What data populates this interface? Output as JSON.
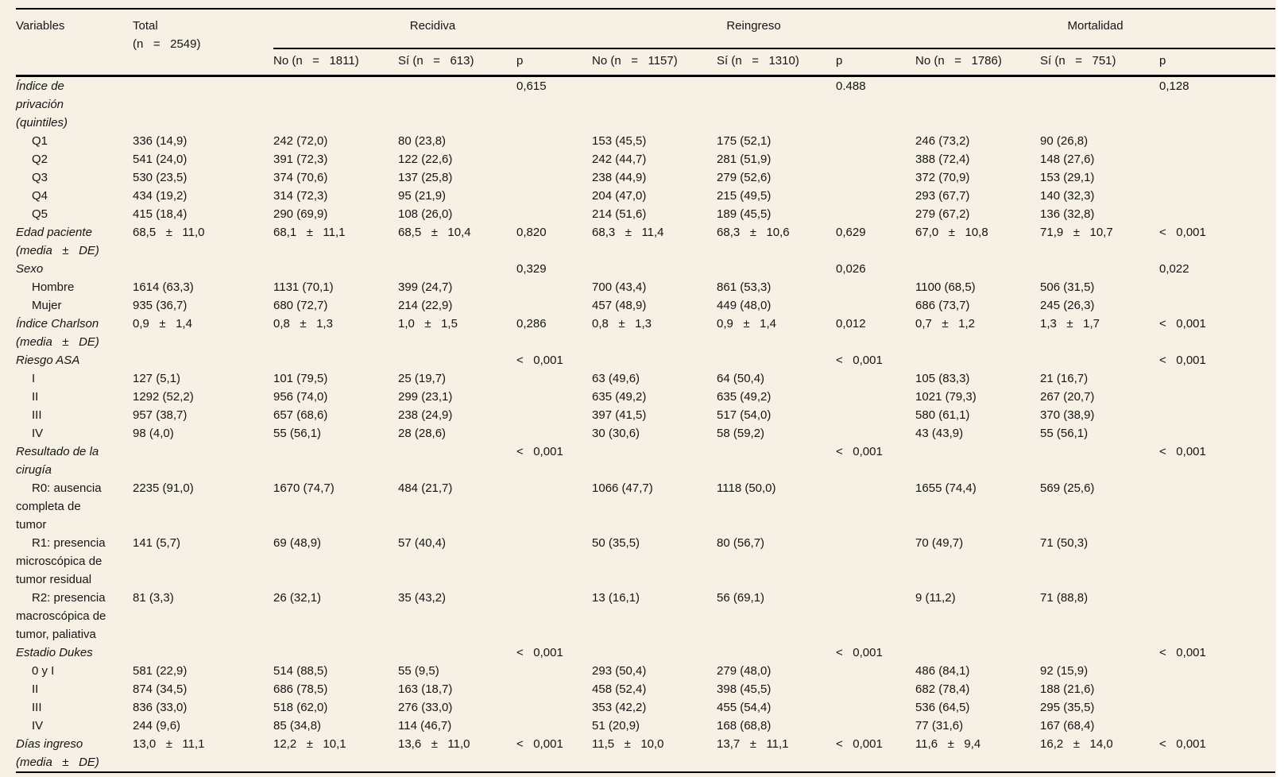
{
  "colors": {
    "page_bg": "#f6f1e4",
    "text": "#151515",
    "rule": "#000000"
  },
  "table": {
    "header": {
      "variables_label": "Variables",
      "total_label": "Total\n(n   =   2549)",
      "groups": [
        {
          "label": "Recidiva",
          "no": "No (n   =   1811)",
          "si": "Sí (n   =   613)",
          "p": "p"
        },
        {
          "label": "Reingreso",
          "no": "No (n   =   1157)",
          "si": "Sí (n   =   1310)",
          "p": "p"
        },
        {
          "label": "Mortalidad",
          "no": "No (n   =   1786)",
          "si": "Sí (n   =   751)",
          "p": "p"
        }
      ]
    },
    "rows": [
      {
        "kind": "section",
        "label": "Índice de\nprivación\n(quintiles)",
        "cells": [
          "",
          "",
          "",
          "0,615",
          "",
          "",
          "0.488",
          "",
          "",
          "0,128"
        ]
      },
      {
        "kind": "sub",
        "label": "Q1",
        "cells": [
          "336 (14,9)",
          "242 (72,0)",
          "80 (23,8)",
          "",
          "153 (45,5)",
          "175 (52,1)",
          "",
          "246 (73,2)",
          "90 (26,8)",
          ""
        ]
      },
      {
        "kind": "sub",
        "label": "Q2",
        "cells": [
          "541 (24,0)",
          "391 (72,3)",
          "122 (22,6)",
          "",
          "242 (44,7)",
          "281 (51,9)",
          "",
          "388 (72,4)",
          "148 (27,6)",
          ""
        ]
      },
      {
        "kind": "sub",
        "label": "Q3",
        "cells": [
          "530 (23,5)",
          "374 (70,6)",
          "137 (25,8)",
          "",
          "238 (44,9)",
          "279 (52,6)",
          "",
          "372 (70,9)",
          "153 (29,1)",
          ""
        ]
      },
      {
        "kind": "sub",
        "label": "Q4",
        "cells": [
          "434 (19,2)",
          "314 (72,3)",
          "95 (21,9)",
          "",
          "204 (47,0)",
          "215 (49,5)",
          "",
          "293 (67,7)",
          "140 (32,3)",
          ""
        ]
      },
      {
        "kind": "sub",
        "label": "Q5",
        "cells": [
          "415 (18,4)",
          "290 (69,9)",
          "108 (26,0)",
          "",
          "214 (51,6)",
          "189 (45,5)",
          "",
          "279 (67,2)",
          "136 (32,8)",
          ""
        ]
      },
      {
        "kind": "section",
        "label": "Edad paciente\n(media   ±   DE)",
        "cells": [
          "68,5   ±   11,0",
          "68,1   ±   11,1",
          "68,5   ±   10,4",
          "0,820",
          "68,3   ±   11,4",
          "68,3   ±   10,6",
          "0,629",
          "67,0   ±   10,8",
          "71,9   ±   10,7",
          "<   0,001"
        ]
      },
      {
        "kind": "section",
        "label": "Sexo",
        "cells": [
          "",
          "",
          "",
          "0,329",
          "",
          "",
          "0,026",
          "",
          "",
          "0,022"
        ]
      },
      {
        "kind": "sub",
        "label": "Hombre",
        "cells": [
          "1614 (63,3)",
          "1131 (70,1)",
          "399 (24,7)",
          "",
          "700 (43,4)",
          "861 (53,3)",
          "",
          "1100 (68,5)",
          "506 (31,5)",
          ""
        ]
      },
      {
        "kind": "sub",
        "label": "Mujer",
        "cells": [
          "935 (36,7)",
          "680 (72,7)",
          "214 (22,9)",
          "",
          "457 (48,9)",
          "449 (48,0)",
          "",
          "686 (73,7)",
          "245 (26,3)",
          ""
        ]
      },
      {
        "kind": "section",
        "label": "Índice Charlson\n(media   ±   DE)",
        "cells": [
          "0,9   ±   1,4",
          "0,8   ±   1,3",
          "1,0   ±   1,5",
          "0,286",
          "0,8   ±   1,3",
          "0,9   ±   1,4",
          "0,012",
          "0,7   ±   1,2",
          "1,3   ±   1,7",
          "<   0,001"
        ]
      },
      {
        "kind": "section",
        "label": "Riesgo ASA",
        "cells": [
          "",
          "",
          "",
          "<   0,001",
          "",
          "",
          "<   0,001",
          "",
          "",
          "<   0,001"
        ]
      },
      {
        "kind": "sub",
        "label": "I",
        "cells": [
          "127 (5,1)",
          "101 (79,5)",
          "25 (19,7)",
          "",
          "63 (49,6)",
          "64 (50,4)",
          "",
          "105 (83,3)",
          "21 (16,7)",
          ""
        ]
      },
      {
        "kind": "sub",
        "label": "II",
        "cells": [
          "1292 (52,2)",
          "956 (74,0)",
          "299 (23,1)",
          "",
          "635 (49,2)",
          "635 (49,2)",
          "",
          "1021 (79,3)",
          "267 (20,7)",
          ""
        ]
      },
      {
        "kind": "sub",
        "label": "III",
        "cells": [
          "957 (38,7)",
          "657 (68,6)",
          "238 (24,9)",
          "",
          "397 (41,5)",
          "517 (54,0)",
          "",
          "580 (61,1)",
          "370 (38,9)",
          ""
        ]
      },
      {
        "kind": "sub",
        "label": "IV",
        "cells": [
          "98 (4,0)",
          "55 (56,1)",
          "28 (28,6)",
          "",
          "30 (30,6)",
          "58 (59,2)",
          "",
          "43 (43,9)",
          "55 (56,1)",
          ""
        ]
      },
      {
        "kind": "section",
        "label": "Resultado de la\ncirugía",
        "cells": [
          "",
          "",
          "",
          "<   0,001",
          "",
          "",
          "<   0,001",
          "",
          "",
          "<   0,001"
        ]
      },
      {
        "kind": "sub",
        "label": "R0: ausencia\ncompleta de\ntumor",
        "cells": [
          "2235 (91,0)",
          "1670 (74,7)",
          "484 (21,7)",
          "",
          "1066 (47,7)",
          "1118 (50,0)",
          "",
          "1655 (74,4)",
          "569 (25,6)",
          ""
        ]
      },
      {
        "kind": "sub",
        "label": "R1: presencia\nmicroscópica de\ntumor residual",
        "cells": [
          "141 (5,7)",
          "69 (48,9)",
          "57 (40,4)",
          "",
          "50 (35,5)",
          "80 (56,7)",
          "",
          "70 (49,7)",
          "71 (50,3)",
          ""
        ]
      },
      {
        "kind": "sub",
        "label": "R2: presencia\nmacroscópica de\ntumor, paliativa",
        "cells": [
          "81 (3,3)",
          "26 (32,1)",
          "35 (43,2)",
          "",
          "13 (16,1)",
          "56 (69,1)",
          "",
          "9 (11,2)",
          "71 (88,8)",
          ""
        ]
      },
      {
        "kind": "section",
        "label": "Estadio Dukes",
        "cells": [
          "",
          "",
          "",
          "<   0,001",
          "",
          "",
          "<   0,001",
          "",
          "",
          "<   0,001"
        ]
      },
      {
        "kind": "sub",
        "label": "0 y I",
        "cells": [
          "581 (22,9)",
          "514 (88,5)",
          "55 (9,5)",
          "",
          "293 (50,4)",
          "279 (48,0)",
          "",
          "486 (84,1)",
          "92 (15,9)",
          ""
        ]
      },
      {
        "kind": "sub",
        "label": "II",
        "cells": [
          "874 (34,5)",
          "686 (78,5)",
          "163 (18,7)",
          "",
          "458 (52,4)",
          "398 (45,5)",
          "",
          "682 (78,4)",
          "188 (21,6)",
          ""
        ]
      },
      {
        "kind": "sub",
        "label": "III",
        "cells": [
          "836 (33,0)",
          "518 (62,0)",
          "276 (33,0)",
          "",
          "353 (42,2)",
          "455 (54,4)",
          "",
          "536 (64,5)",
          "295 (35,5)",
          ""
        ]
      },
      {
        "kind": "sub",
        "label": "IV",
        "cells": [
          "244 (9,6)",
          "85 (34,8)",
          "114 (46,7)",
          "",
          "51 (20,9)",
          "168 (68,8)",
          "",
          "77 (31,6)",
          "167 (68,4)",
          ""
        ]
      },
      {
        "kind": "section",
        "label": "Días ingreso\n(media   ±   DE)",
        "cells": [
          "13,0   ±   11,1",
          "12,2   ±   10,1",
          "13,6   ±   11,0",
          "<   0,001",
          "11,5   ±   10,0",
          "13,7   ±   11,1",
          "<   0,001",
          "11,6   ±   9,4",
          "16,2   ±   14,0",
          "<   0,001"
        ]
      }
    ]
  }
}
